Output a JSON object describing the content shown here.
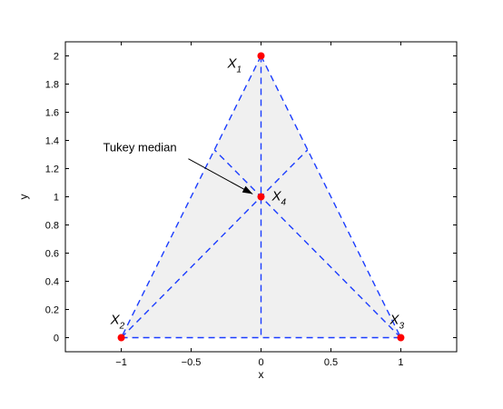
{
  "chart_data": {
    "type": "scatter",
    "title": "",
    "xlabel": "x",
    "ylabel": "y",
    "xlim": [
      -1.4,
      1.4
    ],
    "ylim": [
      -0.1,
      2.1
    ],
    "xticks": [
      -1,
      -0.5,
      0,
      0.5,
      1
    ],
    "xtick_labels": [
      "−1",
      "−0.5",
      "0",
      "0.5",
      "1"
    ],
    "yticks": [
      0,
      0.2,
      0.4,
      0.6,
      0.8,
      1,
      1.2,
      1.4,
      1.6,
      1.8,
      2
    ],
    "ytick_labels": [
      "0",
      "0.2",
      "0.4",
      "0.6",
      "0.8",
      "1",
      "1.2",
      "1.4",
      "1.6",
      "1.8",
      "2"
    ],
    "grid": false,
    "points": [
      {
        "label": "X",
        "sub": "1",
        "x": 0,
        "y": 2
      },
      {
        "label": "X",
        "sub": "2",
        "x": -1,
        "y": 0
      },
      {
        "label": "X",
        "sub": "3",
        "x": 1,
        "y": 0
      },
      {
        "label": "X",
        "sub": "4",
        "x": 0,
        "y": 1
      }
    ],
    "triangle": [
      [
        0,
        2
      ],
      [
        -1,
        0
      ],
      [
        1,
        0
      ]
    ],
    "segments": [
      [
        [
          0,
          2
        ],
        [
          0,
          0
        ]
      ],
      [
        [
          -1,
          0
        ],
        [
          0.333,
          1.333
        ]
      ],
      [
        [
          1,
          0
        ],
        [
          -0.333,
          1.333
        ]
      ]
    ],
    "annotation": {
      "text": "Tukey median",
      "from": [
        -0.52,
        1.27
      ],
      "to": [
        -0.06,
        1.02
      ]
    },
    "colors": {
      "fill": "#f0f0f0",
      "lines": "#1a3cff",
      "points": "#ff0000"
    }
  }
}
